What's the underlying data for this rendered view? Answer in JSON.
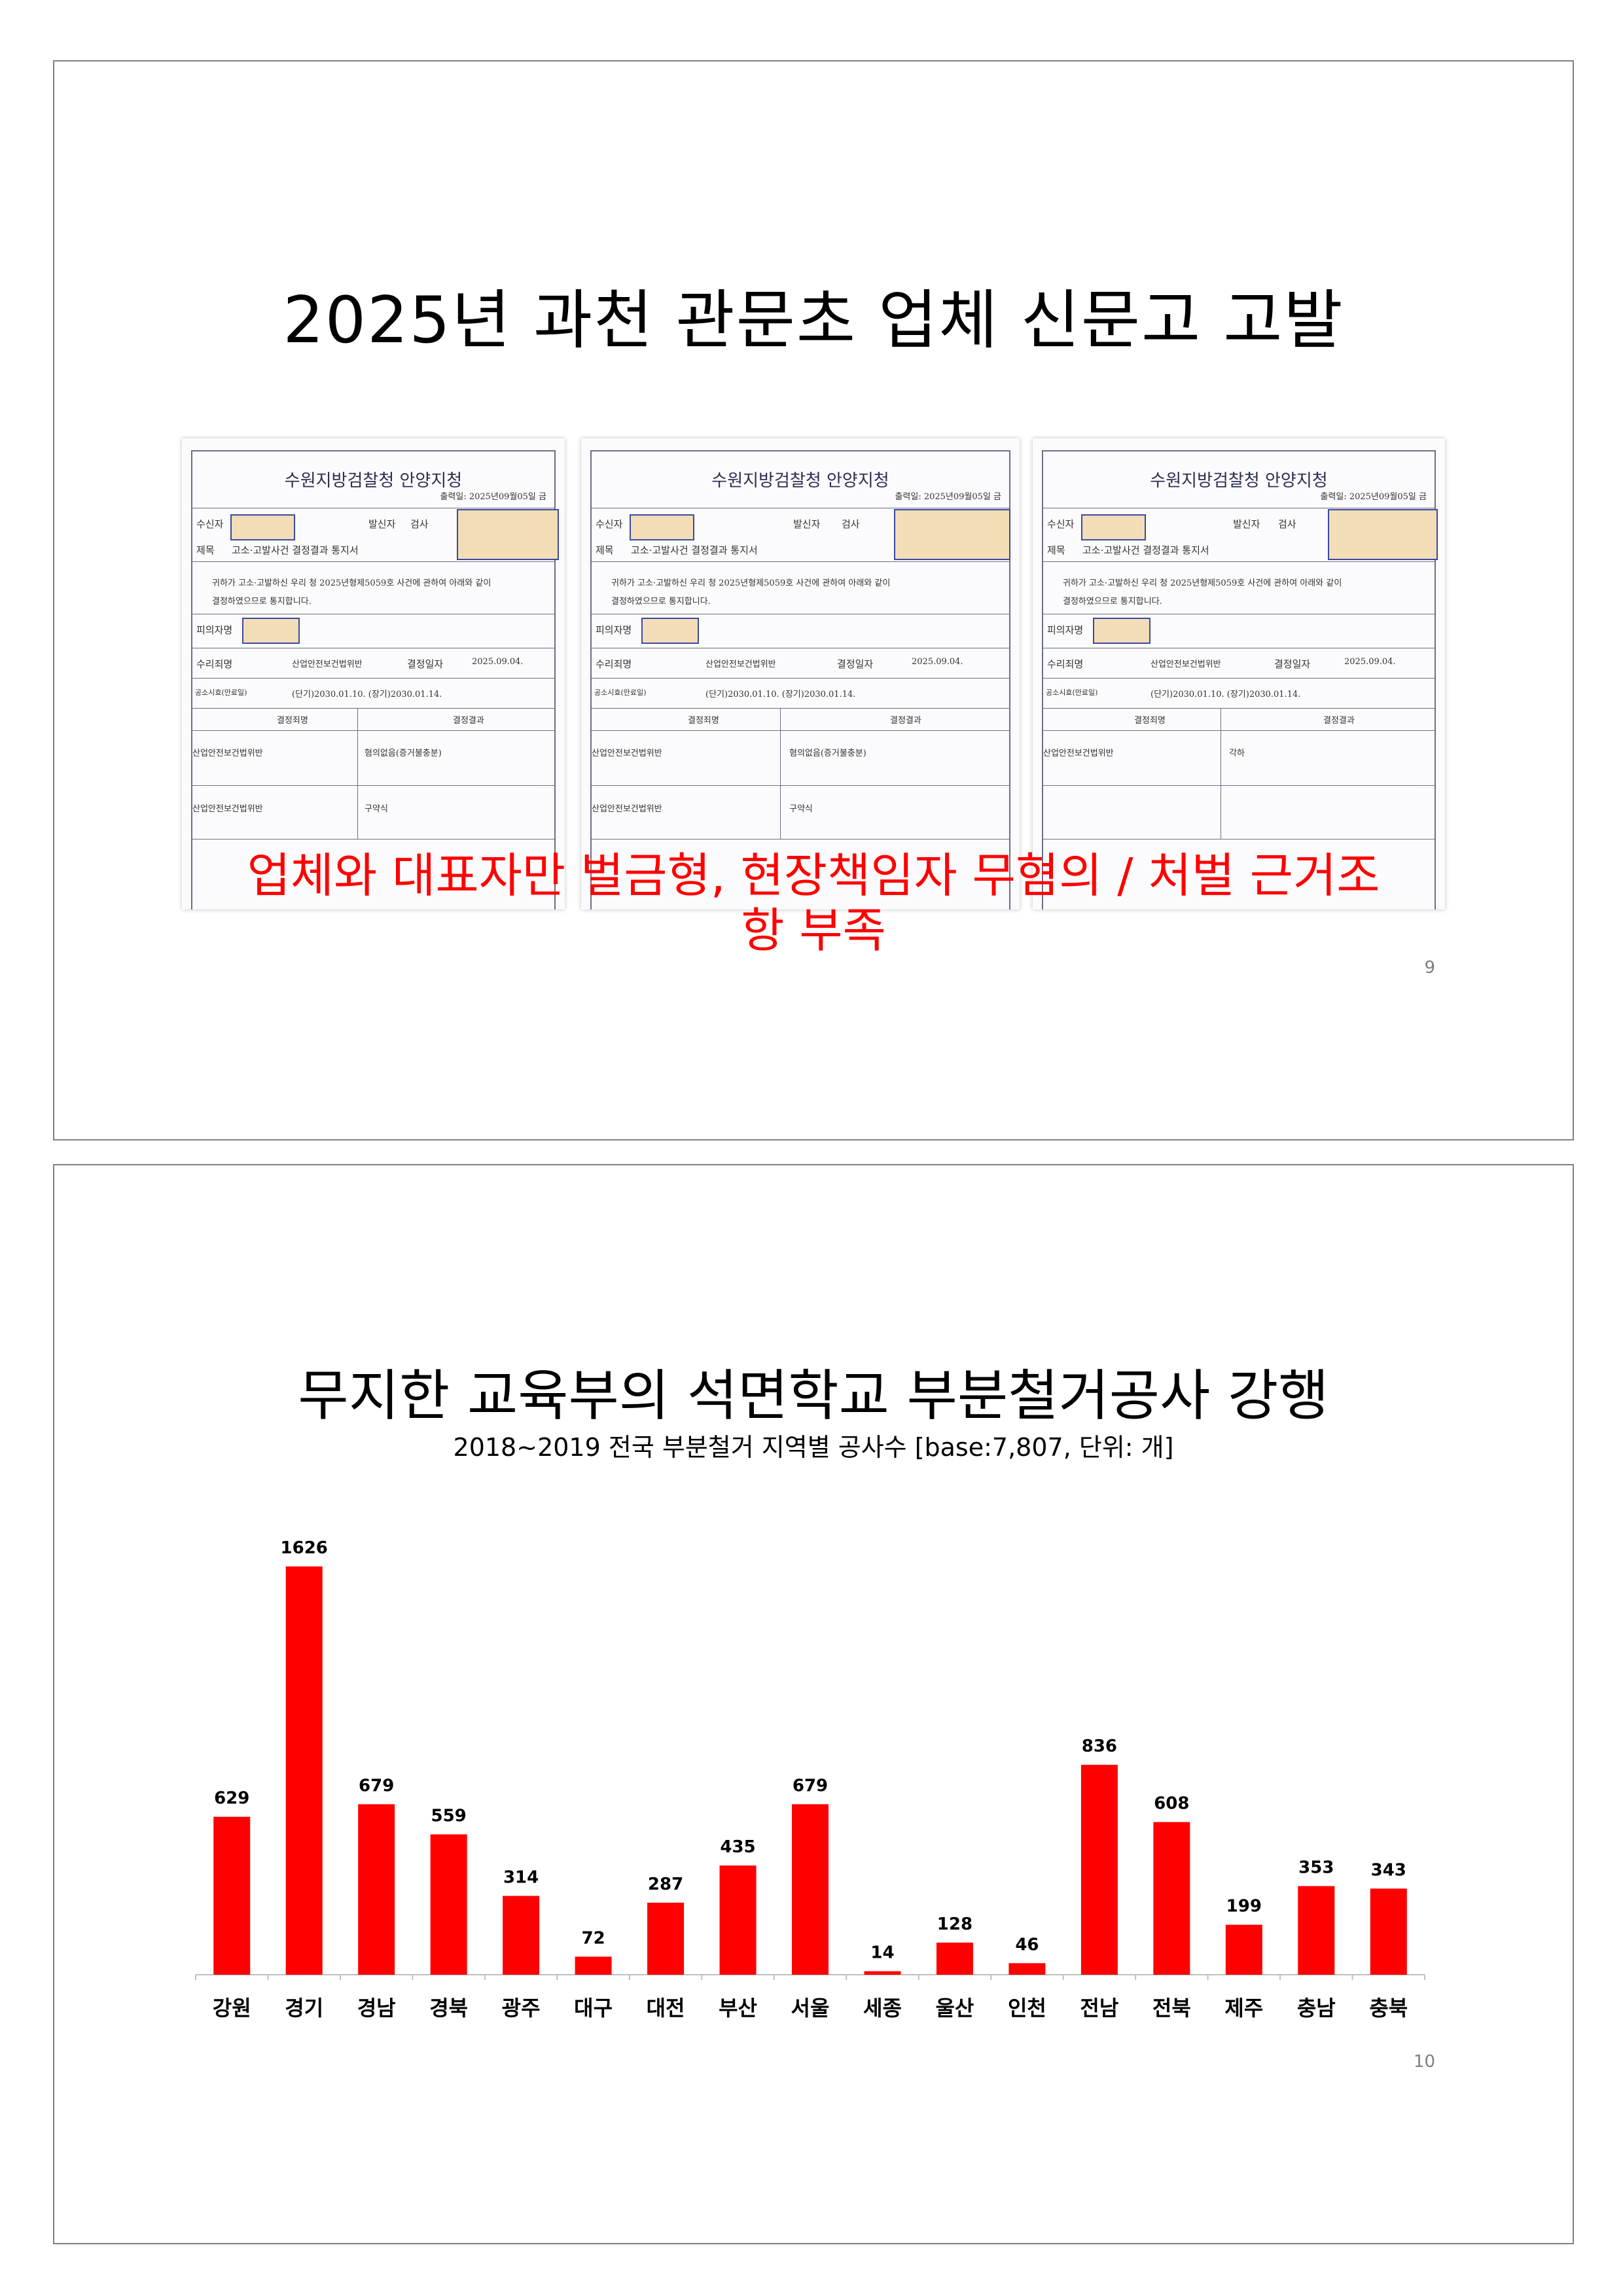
{
  "slide1": {
    "title": "2025년 과천 관문초 업체 신문고 고발",
    "caption_line1": "업체와 대표자만 벌금형, 현장책임자 무혐의 /  처벌 근거조",
    "caption_line2": "항 부족",
    "page_number": "9",
    "scans": [
      {
        "agency": "수원지방검찰청 안양지청",
        "print_date": "출력일: 2025년09월05일 금",
        "recipient_label": "수신자",
        "sender_label": "발신자",
        "sender_value": "검사",
        "subject_label": "제목",
        "subject_value": "고소·고발사건 결정결과 통지서",
        "notice_line1": "귀하가 고소·고발하신 우리 청   2025년형제5059호   사건에 관하여 아래와 같이",
        "notice_line2": "결정하였으므로 통지합니다.",
        "suspect_label": "피의자명",
        "charge_label": "수리죄명",
        "charge_value": "산업안전보건법위반",
        "decision_date_label": "결정일자",
        "decision_date_value": "2025.09.04.",
        "prescription_label": "공소시효(만료일)",
        "prescription_value": "(단기)2030.01.10. (장기)2030.01.14.",
        "table_col1": "결정죄명",
        "table_col2": "결정결과",
        "row1_charge": "산업안전보건법위반",
        "row1_result": "혐의없음(증거불충분)",
        "row2_charge": "산업안전보건법위반",
        "row2_result": "구약식"
      },
      {
        "agency": "수원지방검찰청 안양지청",
        "print_date": "출력일: 2025년09월05일 금",
        "recipient_label": "수신자",
        "sender_label": "발신자",
        "sender_value": "검사",
        "subject_label": "제목",
        "subject_value": "고소·고발사건 결정결과 통지서",
        "notice_line1": "귀하가 고소·고발하신 우리 청   2025년형제5059호   사건에 관하여 아래와 같이",
        "notice_line2": "결정하였으므로 통지합니다.",
        "suspect_label": "피의자명",
        "charge_label": "수리죄명",
        "charge_value": "산업안전보건법위반",
        "decision_date_label": "결정일자",
        "decision_date_value": "2025.09.04.",
        "prescription_label": "공소시효(만료일)",
        "prescription_value": "(단기)2030.01.10. (장기)2030.01.14.",
        "table_col1": "결정죄명",
        "table_col2": "결정결과",
        "row1_charge": "산업안전보건법위반",
        "row1_result": "혐의없음(증거불충분)",
        "row2_charge": "산업안전보건법위반",
        "row2_result": "구약식"
      },
      {
        "agency": "수원지방검찰청 안양지청",
        "print_date": "출력일: 2025년09월05일 금",
        "recipient_label": "수신자",
        "sender_label": "발신자",
        "sender_value": "검사",
        "subject_label": "제목",
        "subject_value": "고소·고발사건 결정결과 통지서",
        "notice_line1": "귀하가 고소·고발하신 우리 청   2025년형제5059호   사건에 관하여 아래와 같이",
        "notice_line2": "결정하였으므로 통지합니다.",
        "suspect_label": "피의자명",
        "charge_label": "수리죄명",
        "charge_value": "산업안전보건법위반",
        "decision_date_label": "결정일자",
        "decision_date_value": "2025.09.04.",
        "prescription_label": "공소시효(만료일)",
        "prescription_value": "(단기)2030.01.10. (장기)2030.01.14.",
        "table_col1": "결정죄명",
        "table_col2": "결정결과",
        "row1_charge": "산업안전보건법위반",
        "row1_result": "각하",
        "row2_charge": "",
        "row2_result": ""
      }
    ],
    "caption_color": "#ff0000"
  },
  "slide2": {
    "title": "무지한 교육부의 석면학교 부분철거공사 강행",
    "subtitle": "2018~2019 전국 부분철거 지역별 공사수 [base:7,807, 단위: 개]",
    "page_number": "10"
  },
  "chart_data": {
    "type": "bar",
    "categories": [
      "강원",
      "경기",
      "경남",
      "경북",
      "광주",
      "대구",
      "대전",
      "부산",
      "서울",
      "세종",
      "울산",
      "인천",
      "전남",
      "전북",
      "제주",
      "충남",
      "충북"
    ],
    "values": [
      629,
      1626,
      679,
      559,
      314,
      72,
      287,
      435,
      679,
      14,
      128,
      46,
      836,
      608,
      199,
      353,
      343
    ],
    "data_labels": [
      "629",
      "1626",
      "679",
      "559",
      "314",
      "72",
      "287",
      "435",
      "679",
      "14",
      "128",
      "46",
      "836",
      "608",
      "199",
      "353",
      "343"
    ],
    "bar_color": "#ff0000",
    "title": "",
    "xlabel": "",
    "ylabel": "",
    "ylim": [
      0,
      1626
    ],
    "grid": false,
    "legend": "none"
  }
}
